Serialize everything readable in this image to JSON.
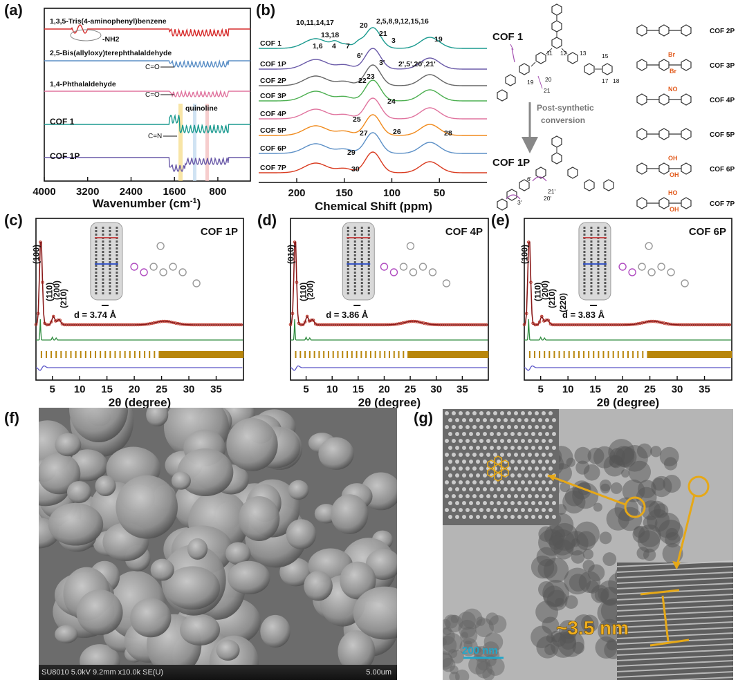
{
  "panels": {
    "a": {
      "label": "(a)"
    },
    "b": {
      "label": "(b)"
    },
    "c": {
      "label": "(c)"
    },
    "d": {
      "label": "(d)"
    },
    "e": {
      "label": "(e)"
    },
    "f": {
      "label": "(f)"
    },
    "g": {
      "label": "(g)"
    }
  },
  "chart_data": [
    {
      "id": "a",
      "type": "line",
      "xlabel": "Wavenumber (cm",
      "xlabel_sup": "-1",
      "xlabel_tail": ")",
      "xticks": [
        4000,
        3200,
        2400,
        1600,
        800
      ],
      "xlim": [
        4000,
        200
      ],
      "series": [
        {
          "name": "1,3,5-Tris(4-aminophenyl)benzene",
          "color": "#d62b2b"
        },
        {
          "name": "2,5-Bis(allyloxy)terephthalaldehyde",
          "color": "#5b8fc6"
        },
        {
          "name": "1,4-Phthalaldehyde",
          "color": "#e0739e"
        },
        {
          "name": "COF 1",
          "color": "#1a9a8f"
        },
        {
          "name": "COF 1P",
          "color": "#6a5aa8"
        }
      ],
      "annotations": [
        "-NH2",
        "C=O",
        "C=O",
        "quinoline",
        "C=N"
      ]
    },
    {
      "id": "b",
      "type": "line",
      "xlabel": "Chemical Shift (ppm)",
      "xticks": [
        200,
        150,
        100,
        50
      ],
      "xlim": [
        240,
        0
      ],
      "series": [
        {
          "name": "COF 1",
          "color": "#1a9a8f"
        },
        {
          "name": "COF 1P",
          "color": "#6a5aa8"
        },
        {
          "name": "COF 2P",
          "color": "#666666"
        },
        {
          "name": "COF 3P",
          "color": "#4caf50"
        },
        {
          "name": "COF 4P",
          "color": "#e0739e"
        },
        {
          "name": "COF 5P",
          "color": "#f08a1c"
        },
        {
          "name": "COF 6P",
          "color": "#5b8fc6"
        },
        {
          "name": "COF 7P",
          "color": "#d93a1f"
        }
      ],
      "peak_labels": [
        "10,11,14,17",
        "20",
        "2,5,8,9,12,15,16",
        "21",
        "3",
        "13,18",
        "1,6",
        "4",
        "7",
        "19",
        "6'",
        "3'",
        "2',5',20',21'",
        "22",
        "23",
        "24",
        "25",
        "27",
        "26",
        "28",
        "29",
        "30"
      ]
    },
    {
      "id": "c",
      "type": "line",
      "title": "COF 1P",
      "xlabel": "2θ (degree)",
      "xticks": [
        5,
        10,
        15,
        20,
        25,
        30,
        35
      ],
      "xlim": [
        2,
        40
      ],
      "reflections": [
        "(100)",
        "(110)",
        "(200)",
        "(210)"
      ],
      "d_spacing": "d = 3.74 Å"
    },
    {
      "id": "d",
      "type": "line",
      "title": "COF 4P",
      "xlabel": "2θ (degree)",
      "xticks": [
        5,
        10,
        15,
        20,
        25,
        30,
        35
      ],
      "xlim": [
        2,
        40
      ],
      "reflections": [
        "(010)",
        "(110)",
        "(200)"
      ],
      "d_spacing": "d = 3.86 Å"
    },
    {
      "id": "e",
      "type": "line",
      "title": "COF 6P",
      "xlabel": "2θ (degree)",
      "xticks": [
        5,
        10,
        15,
        20,
        25,
        30,
        35
      ],
      "xlim": [
        2,
        40
      ],
      "reflections": [
        "(100)",
        "(110)",
        "(200)",
        "(210)",
        "(220)"
      ],
      "d_spacing": "d = 3.83 Å"
    }
  ],
  "schematic": {
    "cof1": "COF 1",
    "cof1p": "COF 1P",
    "arrow_text_1": "Post-synthetic",
    "arrow_text_2": "conversion",
    "variants": [
      "COF 2P",
      "COF 3P",
      "COF 4P",
      "COF 5P",
      "COF 6P",
      "COF 7P"
    ],
    "sub_br": "Br",
    "sub_no2": "NO",
    "sub_oh": "OH",
    "sub_ho": "HO"
  },
  "sem": {
    "info": "SU8010 5.0kV 9.2mm x10.0k SE(U)",
    "scale": "5.00um"
  },
  "tem": {
    "scale": "200 nm",
    "spacing": "~3.5 nm"
  }
}
